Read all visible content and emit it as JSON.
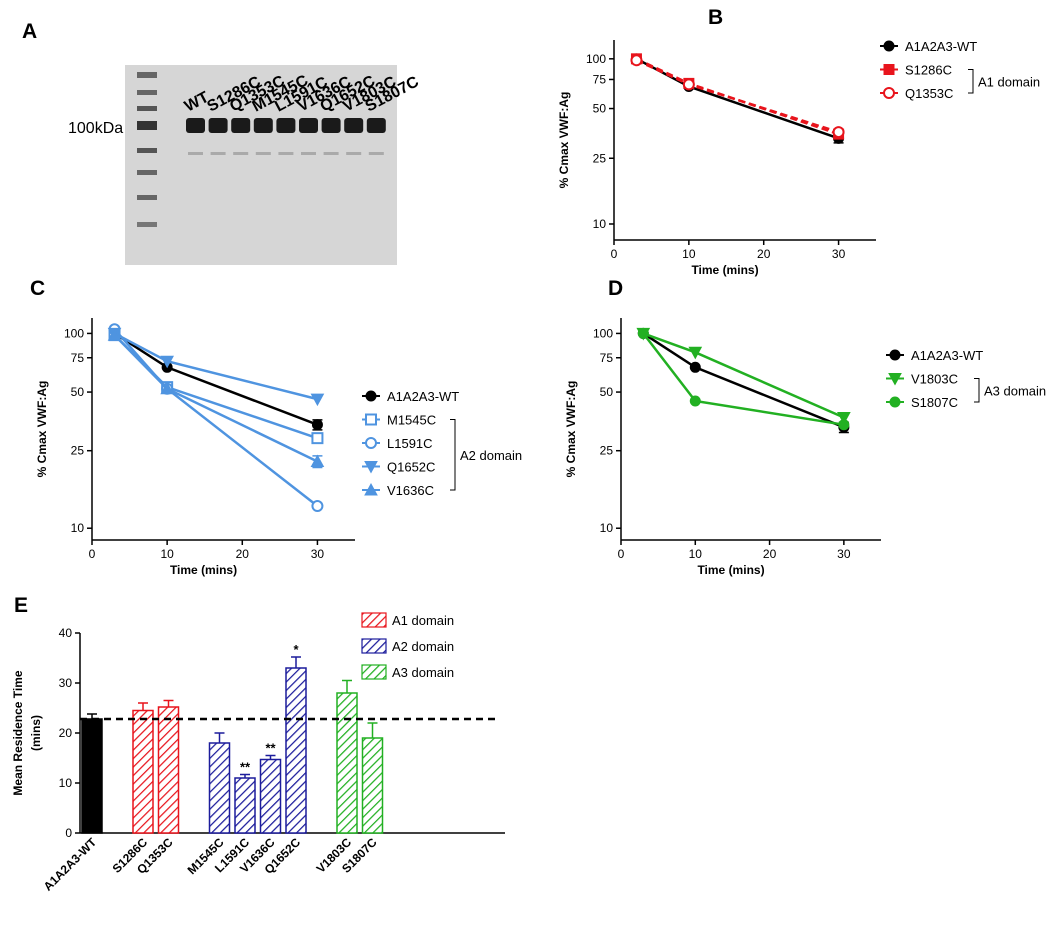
{
  "gel": {
    "panel": "A",
    "size_label": "100kDa",
    "lanes": [
      "WT",
      "S1286C",
      "Q1353C",
      "M1545C",
      "L1591C",
      "V1636C",
      "Q1652C",
      "V1803C",
      "S1807C"
    ]
  },
  "chart_data": [
    {
      "type": "line",
      "panel": "B",
      "xlabel": "Time (mins)",
      "ylabel": "% Cmax VWF:Ag",
      "x": [
        3,
        10,
        30
      ],
      "xlim": [
        0,
        35
      ],
      "xticks": [
        0,
        10,
        20,
        30
      ],
      "ylim": [
        8,
        130
      ],
      "yticks": [
        10,
        25,
        50,
        75,
        100
      ],
      "log_y": true,
      "bracket_label": "A1 domain",
      "series": [
        {
          "name": "A1A2A3-WT",
          "color": "#000000",
          "marker": "circle",
          "values": [
            100,
            68,
            33
          ],
          "errors": [
            null,
            null,
            2
          ]
        },
        {
          "name": "S1286C",
          "color": "#e8141c",
          "marker": "square",
          "dash": true,
          "values": [
            100,
            71,
            35
          ]
        },
        {
          "name": "Q1353C",
          "color": "#e8141c",
          "marker": "circle-open",
          "dash": true,
          "values": [
            98,
            70,
            36
          ]
        }
      ]
    },
    {
      "type": "line",
      "panel": "C",
      "xlabel": "Time (mins)",
      "ylabel": "% Cmax VWF:Ag",
      "x": [
        3,
        10,
        30
      ],
      "xlim": [
        0,
        35
      ],
      "xticks": [
        0,
        10,
        20,
        30
      ],
      "ylim": [
        8.7,
        120
      ],
      "yticks": [
        10,
        25,
        50,
        75,
        100
      ],
      "log_y": true,
      "bracket_label": "A2 domain",
      "series": [
        {
          "name": "A1A2A3-WT",
          "color": "#000000",
          "marker": "circle",
          "values": [
            100,
            67,
            34
          ],
          "errors": [
            null,
            null,
            2
          ]
        },
        {
          "name": "M1545C",
          "color": "#4f94e0",
          "marker": "square-open",
          "values": [
            98,
            53,
            29
          ]
        },
        {
          "name": "L1591C",
          "color": "#4f94e0",
          "marker": "circle-open",
          "values": [
            105,
            52,
            13
          ]
        },
        {
          "name": "Q1652C",
          "color": "#4f94e0",
          "marker": "triangle-down",
          "values": [
            100,
            72,
            46
          ]
        },
        {
          "name": "V1636C",
          "color": "#4f94e0",
          "marker": "triangle-up",
          "values": [
            98,
            52,
            22
          ],
          "errors": [
            null,
            null,
            1.5
          ]
        }
      ]
    },
    {
      "type": "line",
      "panel": "D",
      "xlabel": "Time (mins)",
      "ylabel": "% Cmax VWF:Ag",
      "x": [
        3,
        10,
        30
      ],
      "xlim": [
        0,
        35
      ],
      "xticks": [
        0,
        10,
        20,
        30
      ],
      "ylim": [
        8.7,
        120
      ],
      "yticks": [
        10,
        25,
        50,
        75,
        100
      ],
      "log_y": true,
      "bracket_label": "A3 domain",
      "series": [
        {
          "name": "A1A2A3-WT",
          "color": "#000000",
          "marker": "circle",
          "values": [
            100,
            67,
            33
          ],
          "errors": [
            null,
            null,
            2
          ]
        },
        {
          "name": "V1803C",
          "color": "#22b022",
          "marker": "triangle-down",
          "values": [
            100,
            80,
            37
          ]
        },
        {
          "name": "S1807C",
          "color": "#22b022",
          "marker": "circle",
          "values": [
            100,
            45,
            34
          ]
        }
      ]
    },
    {
      "type": "bar",
      "panel": "E",
      "ylabel": [
        "Mean Residence Time",
        "(mins)"
      ],
      "categories": [
        "A1A2A3-WT",
        "S1286C",
        "Q1353C",
        "M1545C",
        "L1591C",
        "V1636C",
        "Q1652C",
        "V1803C",
        "S1807C"
      ],
      "ylim": [
        0,
        40
      ],
      "yticks": [
        0,
        10,
        20,
        30,
        40
      ],
      "reference_line": 22.8,
      "series": [
        {
          "color": "#000000",
          "values": [
            22.8,
            null,
            null,
            null,
            null,
            null,
            null,
            null,
            null
          ],
          "errors": [
            1,
            null,
            null,
            null,
            null,
            null,
            null,
            null,
            null
          ]
        },
        {
          "name": "A1 domain",
          "color": "#e8141c",
          "values": [
            null,
            24.5,
            25.2,
            null,
            null,
            null,
            null,
            null,
            null
          ],
          "errors": [
            null,
            1.5,
            1.3,
            null,
            null,
            null,
            null,
            null,
            null
          ]
        },
        {
          "name": "A2 domain",
          "color": "#1c1c9c",
          "values": [
            null,
            null,
            null,
            18,
            11,
            14.7,
            33,
            null,
            null
          ],
          "errors": [
            null,
            null,
            null,
            2,
            0.7,
            0.8,
            2.2,
            null,
            null
          ],
          "significance": [
            null,
            null,
            null,
            null,
            "**",
            "**",
            "*",
            null,
            null
          ]
        },
        {
          "name": "A3 domain",
          "color": "#22b022",
          "values": [
            null,
            null,
            null,
            null,
            null,
            null,
            null,
            28,
            19
          ],
          "errors": [
            null,
            null,
            null,
            null,
            null,
            null,
            null,
            2.5,
            3
          ]
        }
      ]
    }
  ]
}
